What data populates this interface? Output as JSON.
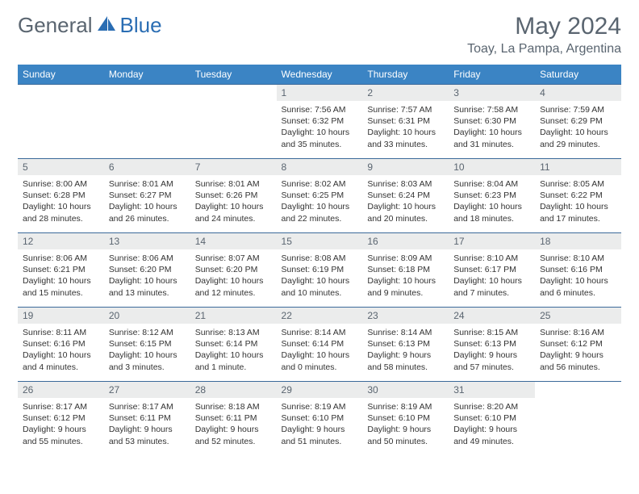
{
  "logo": {
    "text_a": "General",
    "text_b": "Blue",
    "color_a": "#5a6570",
    "color_b": "#2a6db3"
  },
  "title": "May 2024",
  "location": "Toay, La Pampa, Argentina",
  "colors": {
    "header_bg": "#3b84c4",
    "header_fg": "#ffffff",
    "row_border": "#3b6a9a",
    "daynum_bg": "#ebecec",
    "text": "#333333",
    "muted": "#5a6570"
  },
  "weekdays": [
    "Sunday",
    "Monday",
    "Tuesday",
    "Wednesday",
    "Thursday",
    "Friday",
    "Saturday"
  ],
  "weeks": [
    [
      null,
      null,
      null,
      {
        "n": "1",
        "sr": "7:56 AM",
        "ss": "6:32 PM",
        "dl": "10 hours and 35 minutes."
      },
      {
        "n": "2",
        "sr": "7:57 AM",
        "ss": "6:31 PM",
        "dl": "10 hours and 33 minutes."
      },
      {
        "n": "3",
        "sr": "7:58 AM",
        "ss": "6:30 PM",
        "dl": "10 hours and 31 minutes."
      },
      {
        "n": "4",
        "sr": "7:59 AM",
        "ss": "6:29 PM",
        "dl": "10 hours and 29 minutes."
      }
    ],
    [
      {
        "n": "5",
        "sr": "8:00 AM",
        "ss": "6:28 PM",
        "dl": "10 hours and 28 minutes."
      },
      {
        "n": "6",
        "sr": "8:01 AM",
        "ss": "6:27 PM",
        "dl": "10 hours and 26 minutes."
      },
      {
        "n": "7",
        "sr": "8:01 AM",
        "ss": "6:26 PM",
        "dl": "10 hours and 24 minutes."
      },
      {
        "n": "8",
        "sr": "8:02 AM",
        "ss": "6:25 PM",
        "dl": "10 hours and 22 minutes."
      },
      {
        "n": "9",
        "sr": "8:03 AM",
        "ss": "6:24 PM",
        "dl": "10 hours and 20 minutes."
      },
      {
        "n": "10",
        "sr": "8:04 AM",
        "ss": "6:23 PM",
        "dl": "10 hours and 18 minutes."
      },
      {
        "n": "11",
        "sr": "8:05 AM",
        "ss": "6:22 PM",
        "dl": "10 hours and 17 minutes."
      }
    ],
    [
      {
        "n": "12",
        "sr": "8:06 AM",
        "ss": "6:21 PM",
        "dl": "10 hours and 15 minutes."
      },
      {
        "n": "13",
        "sr": "8:06 AM",
        "ss": "6:20 PM",
        "dl": "10 hours and 13 minutes."
      },
      {
        "n": "14",
        "sr": "8:07 AM",
        "ss": "6:20 PM",
        "dl": "10 hours and 12 minutes."
      },
      {
        "n": "15",
        "sr": "8:08 AM",
        "ss": "6:19 PM",
        "dl": "10 hours and 10 minutes."
      },
      {
        "n": "16",
        "sr": "8:09 AM",
        "ss": "6:18 PM",
        "dl": "10 hours and 9 minutes."
      },
      {
        "n": "17",
        "sr": "8:10 AM",
        "ss": "6:17 PM",
        "dl": "10 hours and 7 minutes."
      },
      {
        "n": "18",
        "sr": "8:10 AM",
        "ss": "6:16 PM",
        "dl": "10 hours and 6 minutes."
      }
    ],
    [
      {
        "n": "19",
        "sr": "8:11 AM",
        "ss": "6:16 PM",
        "dl": "10 hours and 4 minutes."
      },
      {
        "n": "20",
        "sr": "8:12 AM",
        "ss": "6:15 PM",
        "dl": "10 hours and 3 minutes."
      },
      {
        "n": "21",
        "sr": "8:13 AM",
        "ss": "6:14 PM",
        "dl": "10 hours and 1 minute."
      },
      {
        "n": "22",
        "sr": "8:14 AM",
        "ss": "6:14 PM",
        "dl": "10 hours and 0 minutes."
      },
      {
        "n": "23",
        "sr": "8:14 AM",
        "ss": "6:13 PM",
        "dl": "9 hours and 58 minutes."
      },
      {
        "n": "24",
        "sr": "8:15 AM",
        "ss": "6:13 PM",
        "dl": "9 hours and 57 minutes."
      },
      {
        "n": "25",
        "sr": "8:16 AM",
        "ss": "6:12 PM",
        "dl": "9 hours and 56 minutes."
      }
    ],
    [
      {
        "n": "26",
        "sr": "8:17 AM",
        "ss": "6:12 PM",
        "dl": "9 hours and 55 minutes."
      },
      {
        "n": "27",
        "sr": "8:17 AM",
        "ss": "6:11 PM",
        "dl": "9 hours and 53 minutes."
      },
      {
        "n": "28",
        "sr": "8:18 AM",
        "ss": "6:11 PM",
        "dl": "9 hours and 52 minutes."
      },
      {
        "n": "29",
        "sr": "8:19 AM",
        "ss": "6:10 PM",
        "dl": "9 hours and 51 minutes."
      },
      {
        "n": "30",
        "sr": "8:19 AM",
        "ss": "6:10 PM",
        "dl": "9 hours and 50 minutes."
      },
      {
        "n": "31",
        "sr": "8:20 AM",
        "ss": "6:10 PM",
        "dl": "9 hours and 49 minutes."
      },
      null
    ]
  ],
  "labels": {
    "sunrise": "Sunrise:",
    "sunset": "Sunset:",
    "daylight": "Daylight:"
  }
}
